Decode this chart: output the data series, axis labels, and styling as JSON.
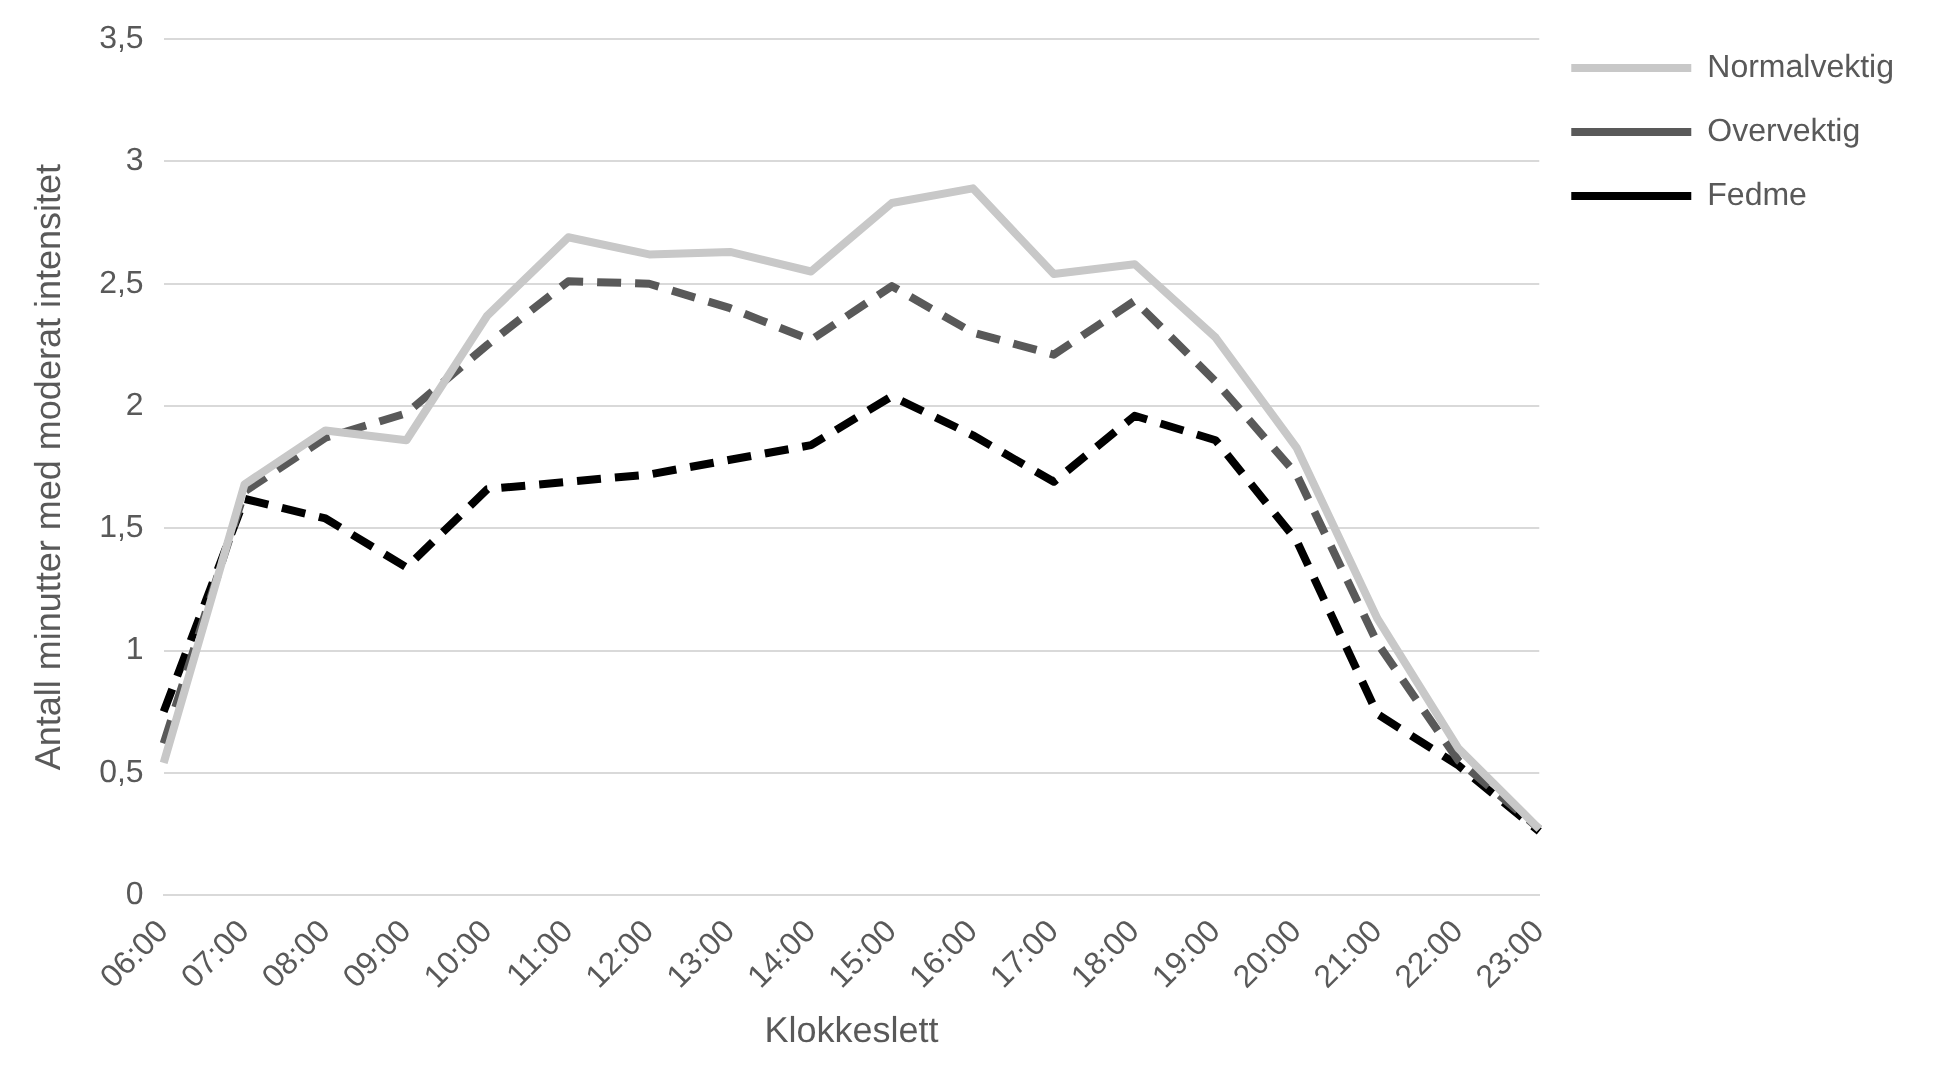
{
  "chart_data": {
    "type": "line",
    "xlabel": "Klokkeslett",
    "ylabel": "Antall minutter med moderat intensitet",
    "categories": [
      "06:00",
      "07:00",
      "08:00",
      "09:00",
      "10:00",
      "11:00",
      "12:00",
      "13:00",
      "14:00",
      "15:00",
      "16:00",
      "17:00",
      "18:00",
      "19:00",
      "20:00",
      "21:00",
      "22:00",
      "23:00"
    ],
    "series": [
      {
        "name": "Normalvektig",
        "color": "#c8c8c8",
        "line_style": "solid",
        "values": [
          0.54,
          1.68,
          1.9,
          1.86,
          2.37,
          2.69,
          2.62,
          2.63,
          2.55,
          2.83,
          2.89,
          2.54,
          2.58,
          2.28,
          1.83,
          1.13,
          0.6,
          0.27
        ]
      },
      {
        "name": "Overvektig",
        "color": "#595959",
        "line_style": "dashed",
        "values": [
          0.62,
          1.65,
          1.87,
          1.97,
          2.25,
          2.51,
          2.5,
          2.4,
          2.27,
          2.49,
          2.3,
          2.21,
          2.43,
          2.1,
          1.72,
          1.03,
          0.55,
          0.27
        ]
      },
      {
        "name": "Fedme",
        "color": "#000000",
        "line_style": "dashed",
        "values": [
          0.75,
          1.62,
          1.54,
          1.34,
          1.66,
          1.69,
          1.72,
          1.78,
          1.84,
          2.04,
          1.88,
          1.69,
          1.96,
          1.86,
          1.45,
          0.74,
          0.53,
          0.26
        ]
      }
    ],
    "ylim": [
      0,
      3.5
    ],
    "yticks": [
      0,
      {
        "value": 0.5,
        "label": "0,5"
      },
      1,
      {
        "value": 1.5,
        "label": "1,5"
      },
      2,
      {
        "value": 2.5,
        "label": "2,5"
      },
      3,
      {
        "value": 3.5,
        "label": "3,5"
      }
    ],
    "grid": "y",
    "legend": "top right",
    "marker": "none"
  }
}
